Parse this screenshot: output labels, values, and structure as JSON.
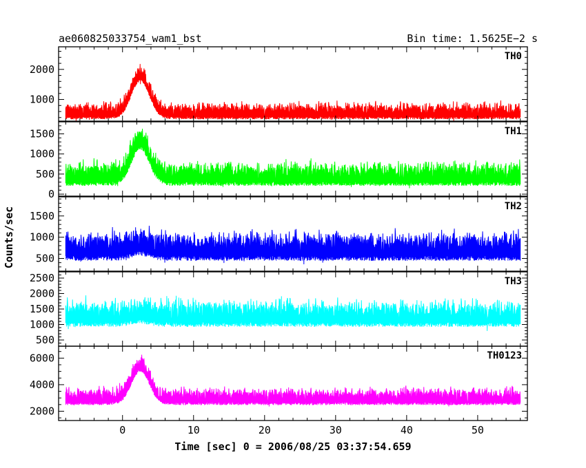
{
  "chart_data": {
    "type": "line",
    "title_left": "ae060825033754_wam1_bst",
    "title_right": "Bin time: 1.5625E−2 s",
    "xlabel": "Time [sec] 0 = 2006/08/25 03:37:54.659",
    "ylabel": "Counts/sec",
    "xlim": [
      -9,
      57
    ],
    "xticks": [
      0,
      10,
      20,
      30,
      40,
      50
    ],
    "x_minor_step": 2,
    "grid": false,
    "series": [
      {
        "name": "TH0",
        "color": "#ff0000",
        "ylim": [
          280,
          2750
        ],
        "yticks": [
          1000,
          2000
        ],
        "y_minor_step": 200,
        "x_start": -8,
        "x_end": 56,
        "baseline": 700,
        "noise": 300,
        "peak": {
          "x": 2.5,
          "height": 1250,
          "width": 1.8
        },
        "description": "noisy light curve ~700 c/s with burst peak ~2000 near t=2.5 s"
      },
      {
        "name": "TH1",
        "color": "#00ff00",
        "ylim": [
          -50,
          1800
        ],
        "yticks": [
          0,
          500,
          1000,
          1500
        ],
        "y_minor_step": 100,
        "x_start": -8,
        "x_end": 56,
        "baseline": 600,
        "noise": 330,
        "peak": {
          "x": 2.5,
          "height": 900,
          "width": 1.8
        },
        "description": "noisy light curve ~600 c/s with burst peak ~1500 near t=2.5 s"
      },
      {
        "name": "TH2",
        "color": "#0000ff",
        "ylim": [
          200,
          1950
        ],
        "yticks": [
          500,
          1000,
          1500
        ],
        "y_minor_step": 100,
        "x_start": -8,
        "x_end": 56,
        "baseline": 900,
        "noise": 380,
        "peak": {
          "x": 2.5,
          "height": 120,
          "width": 1.8
        },
        "description": "noisy light curve ~900 c/s, no clear burst"
      },
      {
        "name": "TH3",
        "color": "#00ffff",
        "ylim": [
          300,
          2700
        ],
        "yticks": [
          500,
          1000,
          1500,
          2000,
          2500
        ],
        "y_minor_step": 100,
        "x_start": -8,
        "x_end": 56,
        "baseline": 1500,
        "noise": 480,
        "peak": {
          "x": 2.5,
          "height": 100,
          "width": 1.8
        },
        "description": "noisy light curve ~1500 c/s, no clear burst"
      },
      {
        "name": "TH0123",
        "color": "#ff00ff",
        "ylim": [
          1300,
          6900
        ],
        "yticks": [
          2000,
          4000,
          6000
        ],
        "y_minor_step": 500,
        "x_start": -8,
        "x_end": 56,
        "baseline": 3300,
        "noise": 700,
        "peak": {
          "x": 2.5,
          "height": 2500,
          "width": 1.8
        },
        "description": "summed light curve ~3300 c/s with burst peak ~6000 near t=2.5 s"
      }
    ]
  }
}
